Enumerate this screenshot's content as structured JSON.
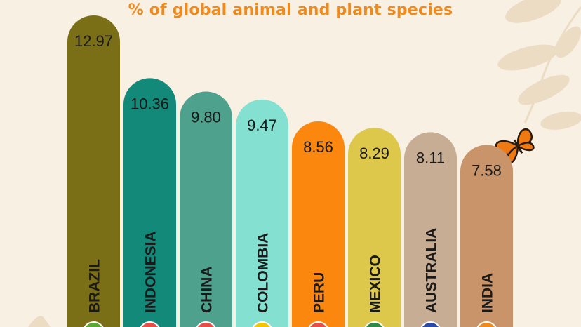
{
  "chart_data": {
    "type": "bar",
    "title": "",
    "subtitle": "% of global animal and plant species",
    "xlabel": "",
    "ylabel": "",
    "categories": [
      "BRAZIL",
      "INDONESIA",
      "CHINA",
      "COLOMBIA",
      "PERU",
      "MEXICO",
      "AUSTRALIA",
      "INDIA"
    ],
    "values": [
      12.97,
      10.36,
      9.8,
      9.47,
      8.56,
      8.29,
      8.11,
      7.58
    ],
    "value_labels": [
      "12.97",
      "10.36",
      "9.80",
      "9.47",
      "8.56",
      "8.29",
      "8.11",
      "7.58"
    ],
    "colors": [
      "#7a6f17",
      "#13897a",
      "#4ea18d",
      "#84e0d0",
      "#fb870f",
      "#ddc84c",
      "#c6ad94",
      "#c99469"
    ],
    "label_color": "#1a1a1a",
    "ylim": [
      0,
      12.97
    ],
    "grid": false,
    "legend": "none"
  },
  "decorations": {
    "leaf_color": "#ecdcc4",
    "butterfly_color": "#f07a12",
    "icons": [
      "leaf-branch-icon",
      "butterfly-icon",
      "flag-icon"
    ]
  }
}
